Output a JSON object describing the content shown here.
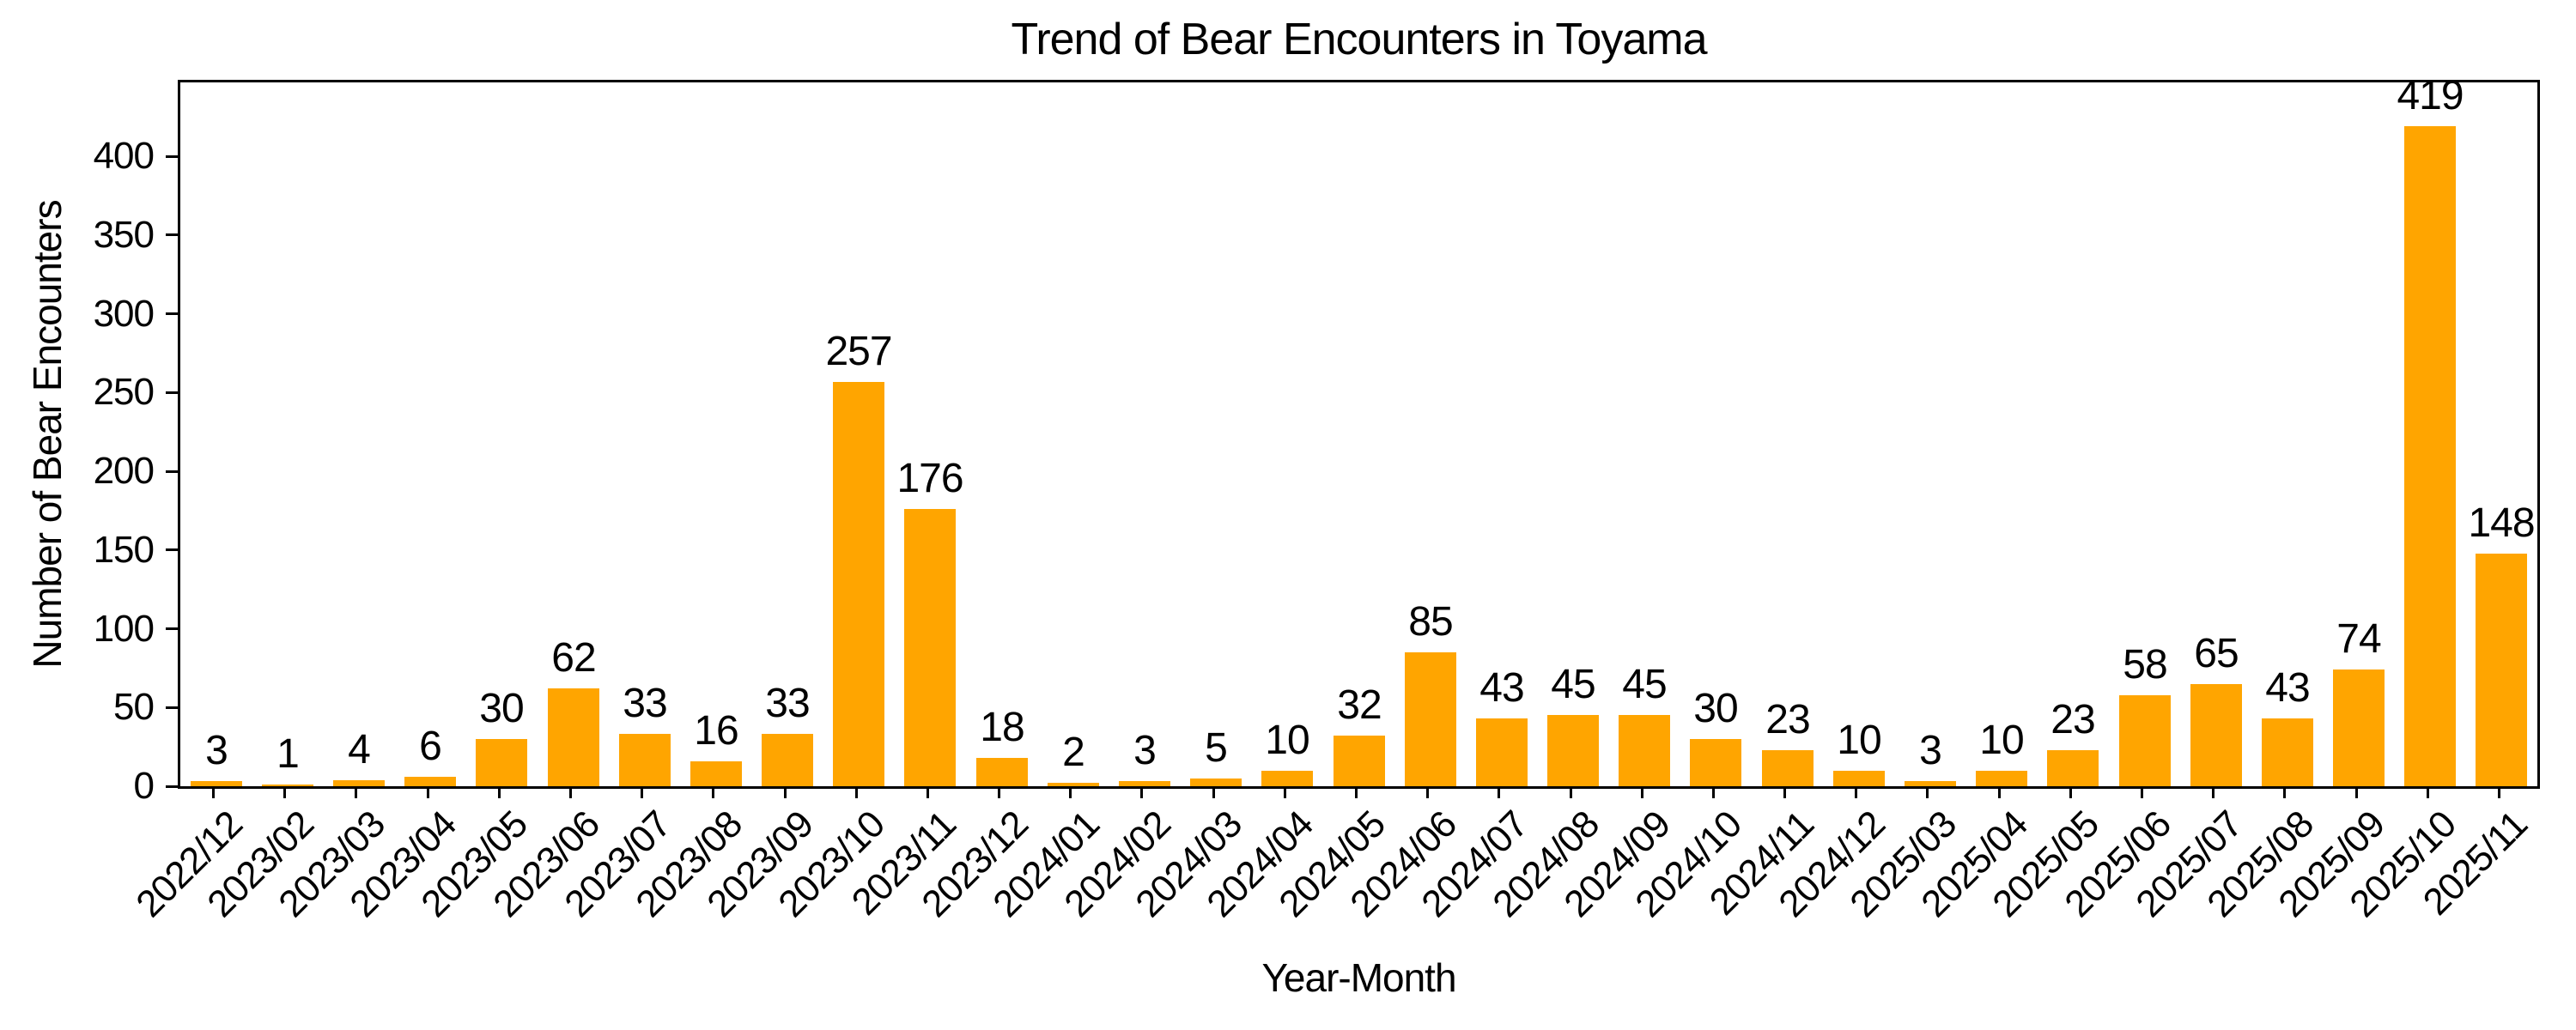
{
  "figure": {
    "background_color": "#FFFFFF",
    "axis_color": "#000000",
    "text_color": "#000000"
  },
  "chart_data": {
    "type": "bar",
    "title": "Trend of Bear Encounters in Toyama",
    "xlabel": "Year-Month",
    "ylabel": "Number of Bear Encounters",
    "categories": [
      "2022/12",
      "2023/02",
      "2023/03",
      "2023/04",
      "2023/05",
      "2023/06",
      "2023/07",
      "2023/08",
      "2023/09",
      "2023/10",
      "2023/11",
      "2023/12",
      "2024/01",
      "2024/02",
      "2024/03",
      "2024/04",
      "2024/05",
      "2024/06",
      "2024/07",
      "2024/08",
      "2024/09",
      "2024/10",
      "2024/11",
      "2024/12",
      "2025/03",
      "2025/04",
      "2025/05",
      "2025/06",
      "2025/07",
      "2025/08",
      "2025/09",
      "2025/10",
      "2025/11"
    ],
    "values": [
      3,
      1,
      4,
      6,
      30,
      62,
      33,
      16,
      33,
      257,
      176,
      18,
      2,
      3,
      5,
      10,
      32,
      85,
      43,
      45,
      45,
      30,
      23,
      10,
      3,
      10,
      23,
      58,
      65,
      43,
      74,
      419,
      148
    ],
    "value_labels_shown": true,
    "bar_color": "#FFA500",
    "ylim": [
      0,
      447
    ],
    "yticks": [
      0,
      50,
      100,
      150,
      200,
      250,
      300,
      350,
      400
    ],
    "grid": false,
    "legend_position": "none"
  }
}
